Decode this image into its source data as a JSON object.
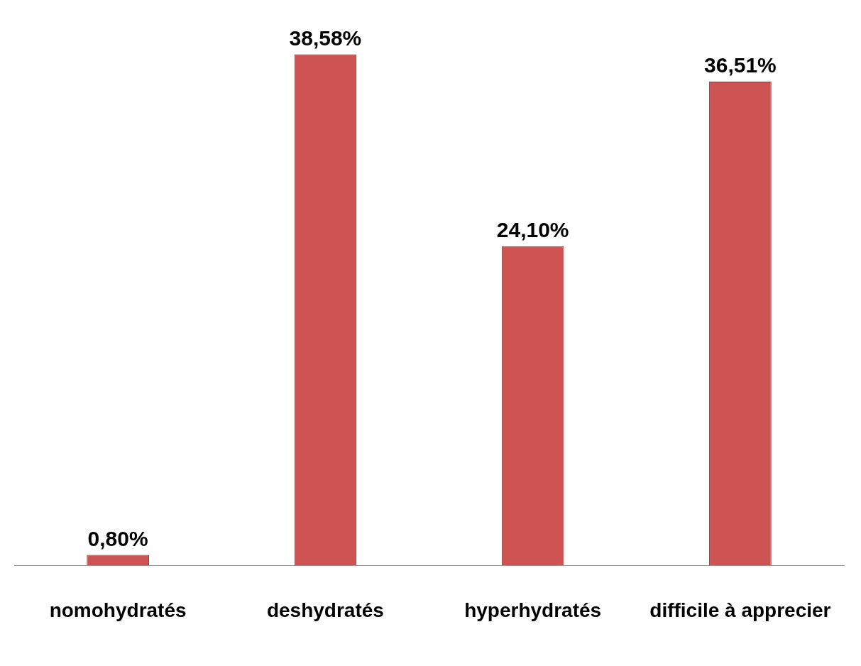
{
  "chart_data": {
    "type": "bar",
    "categories": [
      "nomohydratés",
      "deshydratés",
      "hyperhydratés",
      "difficile à apprecier"
    ],
    "values": [
      0.8,
      38.58,
      24.1,
      36.51
    ],
    "value_labels": [
      "0,80%",
      "38,58%",
      "24,10%",
      "36,51%"
    ],
    "color": "#cd5452",
    "tick_labels": "x"
  }
}
